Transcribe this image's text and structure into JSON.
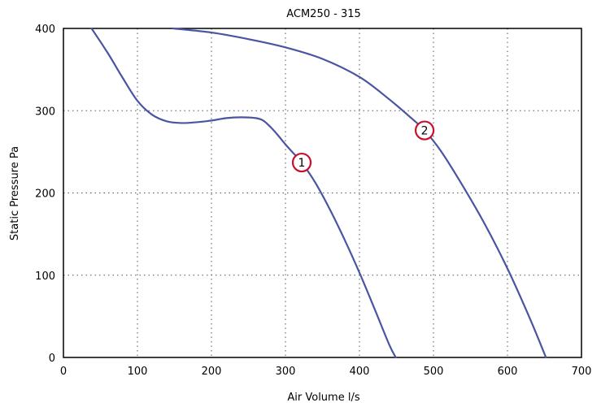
{
  "chart_data": {
    "type": "line",
    "title": "ACM250 - 315",
    "xlabel": "Air Volume l/s",
    "ylabel": "Static Pressure Pa",
    "xlim": [
      0,
      700
    ],
    "ylim": [
      0,
      400
    ],
    "xticks": [
      0,
      100,
      200,
      300,
      400,
      500,
      600,
      700
    ],
    "yticks": [
      0,
      100,
      200,
      300,
      400
    ],
    "grid": true,
    "colors": {
      "series": "#4a55a2",
      "marker": "#c8102e"
    },
    "series": [
      {
        "marker_label": "1",
        "marker_at": [
          322,
          237
        ],
        "x": [
          38,
          60,
          80,
          100,
          120,
          140,
          160,
          180,
          200,
          220,
          240,
          260,
          270,
          280,
          290,
          300,
          310,
          322,
          340,
          360,
          380,
          400,
          420,
          440,
          449
        ],
        "y": [
          400,
          370,
          340,
          312,
          295,
          287,
          285,
          286,
          288,
          291,
          292,
          291,
          288,
          280,
          270,
          259,
          249,
          237,
          213,
          180,
          143,
          103,
          60,
          16,
          0
        ]
      },
      {
        "marker_label": "2",
        "marker_at": [
          488,
          276
        ],
        "x": [
          148,
          200,
          250,
          300,
          350,
          400,
          440,
          470,
          488,
          510,
          540,
          570,
          600,
          630,
          652
        ],
        "y": [
          400,
          395,
          387,
          377,
          363,
          341,
          314,
          291,
          276,
          251,
          208,
          161,
          108,
          48,
          0
        ]
      }
    ]
  }
}
